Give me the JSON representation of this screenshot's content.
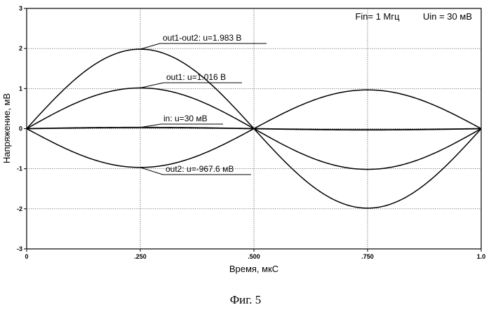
{
  "chart_data": {
    "type": "line",
    "xlabel": "Время, мкС",
    "ylabel": "Напряжение, мВ",
    "xlim": [
      0,
      1.0
    ],
    "ylim": [
      -3,
      3
    ],
    "grid": true,
    "xticks": [
      0,
      0.25,
      0.5,
      0.75,
      1.0
    ],
    "xtick_labels": [
      "0",
      ".250",
      ".500",
      ".750",
      "1.0"
    ],
    "yticks": [
      3,
      2,
      1,
      0,
      -1,
      -2,
      -3
    ],
    "ytick_labels": [
      "3",
      "2",
      "1",
      "0",
      "-1",
      "-2",
      "-3"
    ],
    "notes": [
      "Fin= 1 Мгц",
      "Uin = 30 мВ"
    ],
    "series": [
      {
        "label": "out1-out2: u=1.983 В",
        "amplitude": 1.983,
        "x": [
          0,
          0.125,
          0.25,
          0.375,
          0.5,
          0.625,
          0.75,
          0.875,
          1.0
        ],
        "y": [
          0,
          1.4,
          1.983,
          1.4,
          0,
          -1.4,
          -1.983,
          -1.4,
          0
        ]
      },
      {
        "label": "out1: u=1.016 В",
        "amplitude": 1.016,
        "x": [
          0,
          0.125,
          0.25,
          0.375,
          0.5,
          0.625,
          0.75,
          0.875,
          1.0
        ],
        "y": [
          0,
          0.72,
          1.016,
          0.72,
          0,
          -0.72,
          -1.016,
          -0.72,
          0
        ]
      },
      {
        "label": "in: u=30 мВ",
        "amplitude": 0.03,
        "x": [
          0,
          0.125,
          0.25,
          0.375,
          0.5,
          0.625,
          0.75,
          0.875,
          1.0
        ],
        "y": [
          0,
          0.021,
          0.03,
          0.021,
          0,
          -0.021,
          -0.03,
          -0.021,
          0
        ]
      },
      {
        "label": "out2: u=-967.6 мВ",
        "amplitude": -0.9676,
        "x": [
          0,
          0.125,
          0.25,
          0.375,
          0.5,
          0.625,
          0.75,
          0.875,
          1.0
        ],
        "y": [
          0,
          -0.684,
          -0.9676,
          -0.684,
          0,
          0.684,
          0.9676,
          0.684,
          0
        ]
      }
    ],
    "caption": "Фиг. 5"
  }
}
